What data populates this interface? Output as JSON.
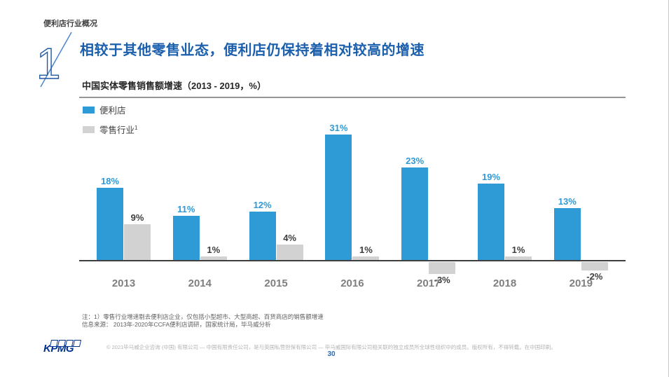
{
  "header": {
    "section_label": "便利店行业概况",
    "slide_number": "1",
    "title": "相较于其他零售业态，便利店仍保持着相对较高的增速"
  },
  "chart": {
    "title": "中国实体零售销售额增速（2013 - 2019，%）",
    "legend": [
      {
        "label": "便利店",
        "sup": ""
      },
      {
        "label": "零售行业",
        "sup": "1"
      }
    ]
  },
  "chart_data": {
    "type": "bar",
    "title": "中国实体零售销售额增速（2013 - 2019，%）",
    "categories": [
      "2013",
      "2014",
      "2015",
      "2016",
      "2017",
      "2018",
      "2019"
    ],
    "series": [
      {
        "name": "便利店",
        "color": "#2e9ad6",
        "label_color": "#2e9ad6",
        "values": [
          18,
          11,
          12,
          31,
          23,
          19,
          13
        ]
      },
      {
        "name": "零售行业",
        "color": "#d2d2d2",
        "label_color": "#3d3d3d",
        "values": [
          9,
          1,
          4,
          1,
          -3,
          1,
          -2
        ]
      }
    ],
    "unit": "%",
    "ylim": [
      -3,
      31
    ],
    "grid": false,
    "legend_position": "top-left"
  },
  "notes": {
    "line1": "注：1）零售行业增速剔去便利店企业，仅包括小型超市、大型商超、百货商店的销售额增速",
    "line2": "信息来源： 2013年-2020年CCFA便利店调研，国家统计局，毕马威分析"
  },
  "footer": {
    "logo_text": "KPMG",
    "copyright": "© 2021毕马威企业咨询 (中国) 有限公司 — 中国有限责任公司，是与英国私营担保有限公司 — 毕马威国际有限公司相关联的独立成员所全球性组织中的成员。版权所有，不得转载。在中国印刷。",
    "page_number": "30"
  }
}
